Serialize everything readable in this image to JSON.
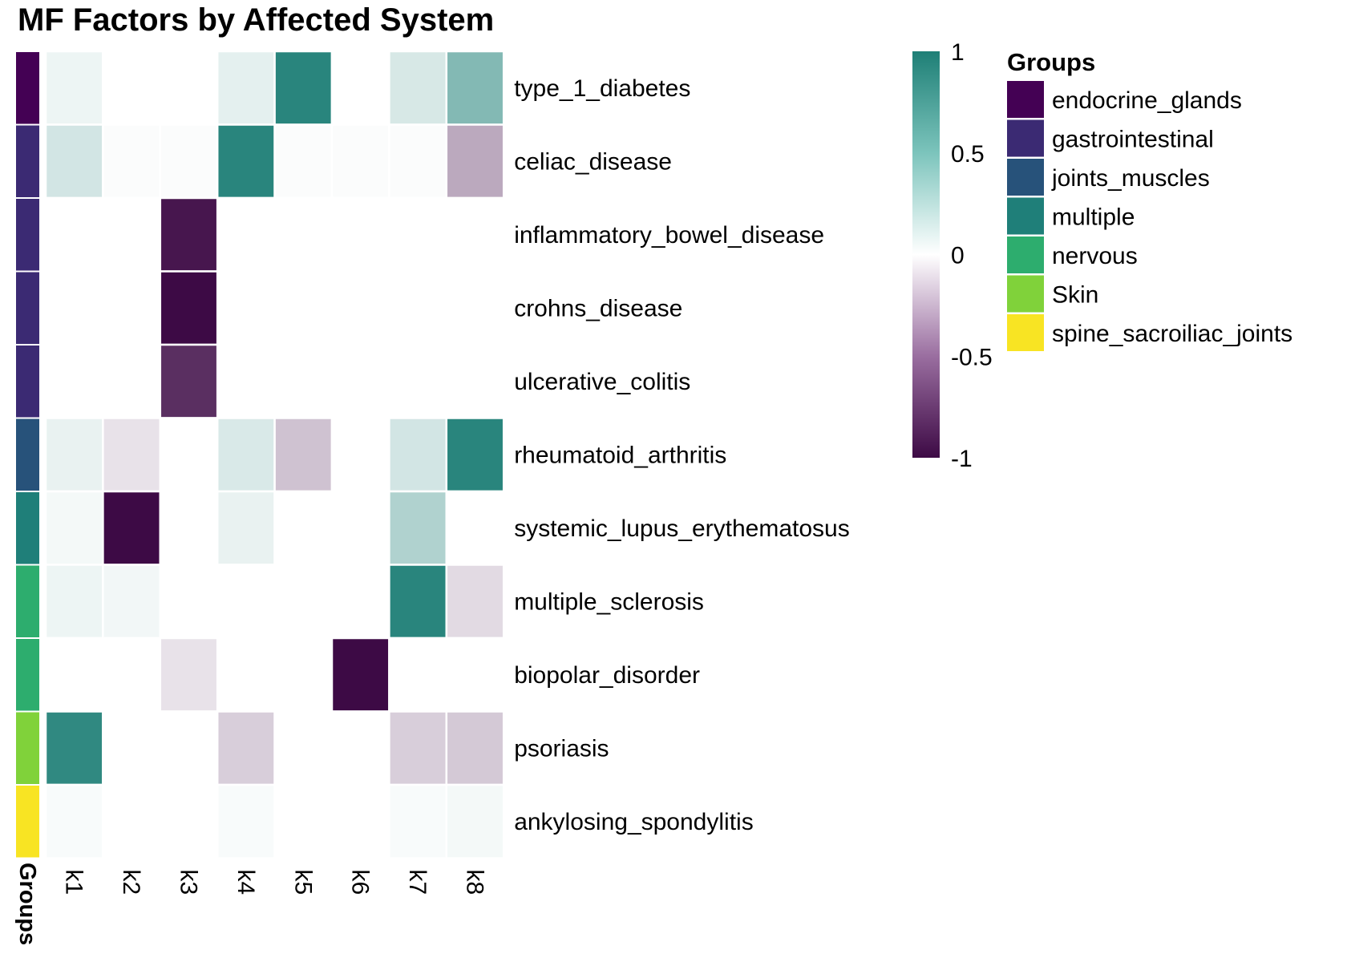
{
  "chart_data": {
    "type": "heatmap",
    "title": "MF Factors by Affected System",
    "columns": [
      "k1",
      "k2",
      "k3",
      "k4",
      "k5",
      "k6",
      "k7",
      "k8"
    ],
    "rows": [
      "type_1_diabetes",
      "celiac_disease",
      "inflammatory_bowel_disease",
      "crohns_disease",
      "ulcerative_colitis",
      "rheumatoid_arthritis",
      "systemic_lupus_erythematosus",
      "multiple_sclerosis",
      "biopolar_disorder",
      "psoriasis",
      "ankylosing_spondylitis"
    ],
    "values": [
      [
        0.08,
        0.0,
        0.0,
        0.12,
        0.95,
        0.0,
        0.18,
        0.55
      ],
      [
        0.2,
        0.02,
        0.02,
        0.95,
        0.02,
        0.02,
        0.02,
        -0.35
      ],
      [
        0.0,
        0.0,
        -0.95,
        0.0,
        0.0,
        0.0,
        0.0,
        0.0
      ],
      [
        0.0,
        0.0,
        -1.0,
        0.0,
        0.0,
        0.0,
        0.0,
        0.0
      ],
      [
        0.0,
        0.0,
        -0.85,
        0.0,
        0.0,
        0.0,
        0.0,
        0.0
      ],
      [
        0.1,
        -0.12,
        0.0,
        0.17,
        -0.25,
        0.0,
        0.2,
        0.95
      ],
      [
        0.05,
        -1.0,
        0.0,
        0.1,
        0.0,
        0.0,
        0.35,
        0.0
      ],
      [
        0.08,
        0.06,
        0.0,
        0.0,
        0.0,
        0.0,
        0.95,
        -0.15
      ],
      [
        0.0,
        0.0,
        -0.12,
        0.0,
        0.0,
        -1.0,
        0.0,
        0.0
      ],
      [
        0.92,
        0.0,
        0.0,
        -0.2,
        0.0,
        0.0,
        -0.2,
        -0.22
      ],
      [
        0.03,
        0.0,
        0.0,
        0.03,
        0.0,
        0.0,
        0.03,
        0.05
      ]
    ],
    "row_groups": [
      "endocrine_glands",
      "gastrointestinal",
      "gastrointestinal",
      "gastrointestinal",
      "gastrointestinal",
      "joints_muscles",
      "multiple",
      "nervous",
      "nervous",
      "Skin",
      "spine_sacroiliac_joints"
    ],
    "group_annotation_label": "Groups",
    "color_scale": {
      "min": -1,
      "max": 1,
      "ticks": [
        "1",
        "0.5",
        "0",
        "-0.5",
        "-1"
      ],
      "tick_values": [
        1,
        0.5,
        0,
        -0.5,
        -1
      ],
      "low_color": "#3d0a45",
      "mid_color": "#ffffff",
      "high_color": "#1e7f76"
    },
    "legend": {
      "title": "Groups",
      "placement": "right",
      "items": [
        {
          "label": "endocrine_glands",
          "color": "#440154"
        },
        {
          "label": "gastrointestinal",
          "color": "#3b2a73"
        },
        {
          "label": "joints_muscles",
          "color": "#27527a"
        },
        {
          "label": "multiple",
          "color": "#1f7f79"
        },
        {
          "label": "nervous",
          "color": "#2dad6e"
        },
        {
          "label": "Skin",
          "color": "#80d23a"
        },
        {
          "label": "spine_sacroiliac_joints",
          "color": "#f8e423"
        }
      ]
    }
  }
}
